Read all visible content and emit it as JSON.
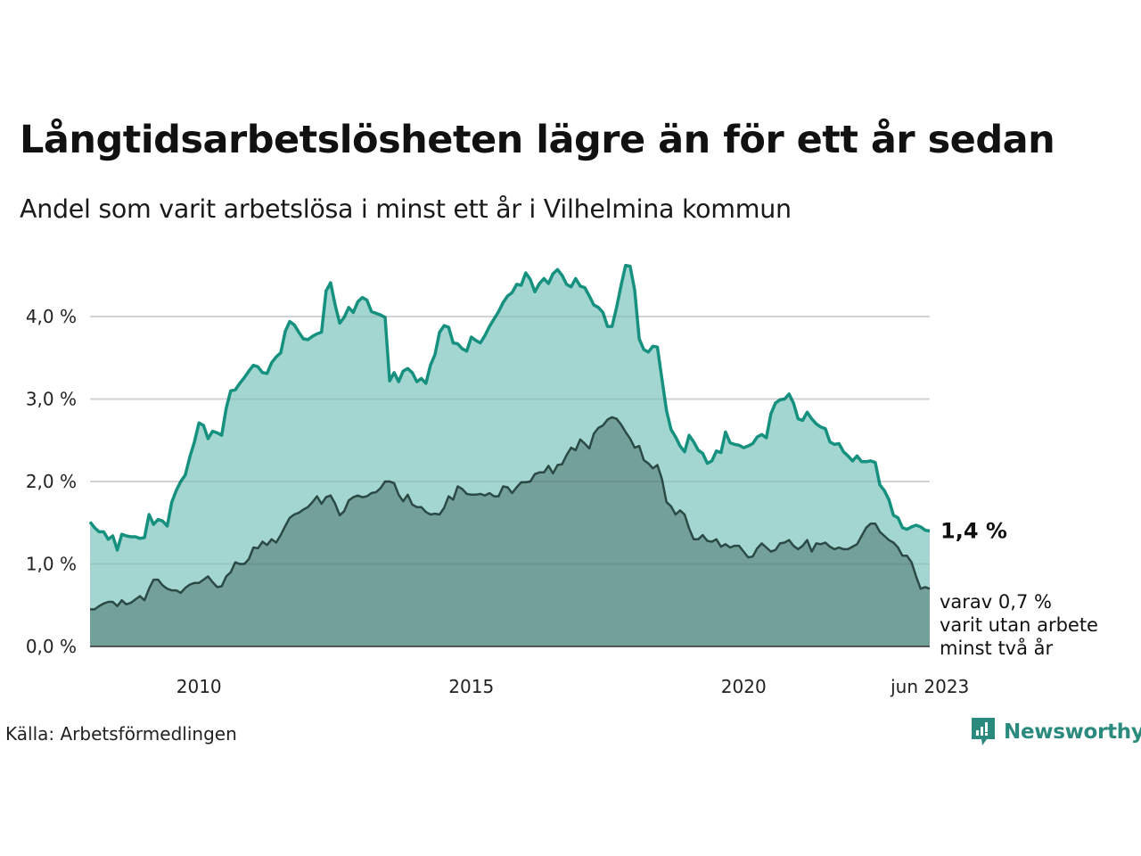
{
  "header": {
    "title": "Långtidsarbetslösheten lägre än för ett år sedan",
    "subtitle": "Andel som varit arbetslösa i minst ett år i Vilhelmina kommun"
  },
  "footer": {
    "source": "Källa: Arbetsförmedlingen",
    "brand": "Newsworthy",
    "brand_icon": "newsworthy-logo-icon"
  },
  "colors": {
    "upper_line": "#16917f",
    "upper_fill": "#a3d6d0",
    "lower_line": "#2b4a46",
    "lower_fill": "#6f9c95",
    "grid": "#e3e3e8",
    "brand": "#2a8a7e"
  },
  "chart_data": {
    "type": "area",
    "title": "Långtidsarbetslösheten lägre än för ett år sedan",
    "subtitle": "Andel som varit arbetslösa i minst ett år i Vilhelmina kommun",
    "xlabel": "",
    "ylabel": "",
    "x_start": "2008-01",
    "x_end": "2023-06",
    "frequency": "monthly",
    "ylim": [
      0,
      4.6
    ],
    "yticks": [
      0,
      1,
      2,
      3,
      4
    ],
    "ytick_labels": [
      "0,0 %",
      "1,0 %",
      "2,0 %",
      "3,0 %",
      "4,0 %"
    ],
    "xticks": [
      {
        "year": 2010,
        "label": "2010"
      },
      {
        "year": 2015,
        "label": "2015"
      },
      {
        "year": 2020,
        "label": "2020"
      },
      {
        "year": 2023.42,
        "label": "jun 2023"
      }
    ],
    "grid": true,
    "series": [
      {
        "name": "Minst ett år",
        "end_label": "1,4 %",
        "values": [
          1.51,
          1.44,
          1.39,
          1.39,
          1.3,
          1.34,
          1.17,
          1.36,
          1.34,
          1.33,
          1.33,
          1.31,
          1.32,
          1.6,
          1.48,
          1.54,
          1.52,
          1.46,
          1.75,
          1.89,
          2.0,
          2.08,
          2.3,
          2.48,
          2.71,
          2.68,
          2.52,
          2.61,
          2.59,
          2.56,
          2.89,
          3.1,
          3.11,
          3.19,
          3.26,
          3.34,
          3.41,
          3.39,
          3.32,
          3.31,
          3.44,
          3.51,
          3.56,
          3.82,
          3.94,
          3.9,
          3.81,
          3.73,
          3.72,
          3.76,
          3.79,
          3.81,
          4.31,
          4.41,
          4.14,
          3.92,
          3.99,
          4.11,
          4.05,
          4.18,
          4.23,
          4.2,
          4.06,
          4.04,
          4.02,
          3.99,
          3.22,
          3.32,
          3.21,
          3.34,
          3.37,
          3.32,
          3.21,
          3.25,
          3.19,
          3.41,
          3.54,
          3.81,
          3.89,
          3.87,
          3.68,
          3.67,
          3.61,
          3.58,
          3.75,
          3.71,
          3.68,
          3.77,
          3.88,
          3.97,
          4.06,
          4.17,
          4.25,
          4.29,
          4.39,
          4.38,
          4.53,
          4.45,
          4.3,
          4.4,
          4.46,
          4.4,
          4.52,
          4.57,
          4.5,
          4.39,
          4.36,
          4.46,
          4.37,
          4.35,
          4.25,
          4.14,
          4.11,
          4.05,
          3.88,
          3.88,
          4.11,
          4.38,
          4.62,
          4.61,
          4.32,
          3.73,
          3.6,
          3.57,
          3.64,
          3.63,
          3.24,
          2.86,
          2.63,
          2.54,
          2.43,
          2.36,
          2.56,
          2.48,
          2.38,
          2.34,
          2.22,
          2.25,
          2.37,
          2.35,
          2.6,
          2.47,
          2.45,
          2.44,
          2.41,
          2.43,
          2.46,
          2.54,
          2.57,
          2.53,
          2.82,
          2.95,
          2.99,
          3.0,
          3.06,
          2.95,
          2.76,
          2.74,
          2.84,
          2.76,
          2.7,
          2.66,
          2.64,
          2.48,
          2.45,
          2.46,
          2.36,
          2.31,
          2.25,
          2.31,
          2.24,
          2.24,
          2.25,
          2.23,
          1.96,
          1.89,
          1.78,
          1.59,
          1.56,
          1.44,
          1.42,
          1.45,
          1.47,
          1.45,
          1.41,
          1.4
        ]
      },
      {
        "name": "Minst två år",
        "end_label_lines": [
          "varav 0,7 %",
          "varit utan arbete",
          "minst två år"
        ],
        "values": [
          0.45,
          0.45,
          0.49,
          0.52,
          0.54,
          0.54,
          0.49,
          0.56,
          0.51,
          0.53,
          0.57,
          0.61,
          0.56,
          0.7,
          0.81,
          0.81,
          0.74,
          0.7,
          0.68,
          0.68,
          0.65,
          0.71,
          0.75,
          0.77,
          0.77,
          0.81,
          0.85,
          0.78,
          0.72,
          0.73,
          0.85,
          0.9,
          1.02,
          1.0,
          1.0,
          1.06,
          1.2,
          1.19,
          1.27,
          1.23,
          1.3,
          1.26,
          1.35,
          1.46,
          1.56,
          1.6,
          1.62,
          1.66,
          1.69,
          1.75,
          1.82,
          1.73,
          1.81,
          1.83,
          1.73,
          1.59,
          1.64,
          1.77,
          1.81,
          1.83,
          1.81,
          1.82,
          1.86,
          1.87,
          1.92,
          2.0,
          2.0,
          1.98,
          1.84,
          1.76,
          1.84,
          1.72,
          1.69,
          1.69,
          1.63,
          1.6,
          1.61,
          1.6,
          1.68,
          1.82,
          1.78,
          1.94,
          1.91,
          1.85,
          1.84,
          1.84,
          1.85,
          1.83,
          1.86,
          1.82,
          1.82,
          1.94,
          1.93,
          1.86,
          1.93,
          1.99,
          1.99,
          2.0,
          2.09,
          2.11,
          2.11,
          2.19,
          2.1,
          2.2,
          2.21,
          2.32,
          2.41,
          2.38,
          2.51,
          2.46,
          2.4,
          2.58,
          2.65,
          2.68,
          2.75,
          2.78,
          2.76,
          2.69,
          2.6,
          2.52,
          2.41,
          2.43,
          2.26,
          2.22,
          2.16,
          2.2,
          2.03,
          1.75,
          1.7,
          1.6,
          1.65,
          1.6,
          1.43,
          1.3,
          1.3,
          1.35,
          1.28,
          1.27,
          1.3,
          1.21,
          1.24,
          1.2,
          1.22,
          1.22,
          1.15,
          1.08,
          1.09,
          1.19,
          1.25,
          1.2,
          1.15,
          1.17,
          1.25,
          1.26,
          1.29,
          1.22,
          1.18,
          1.22,
          1.29,
          1.15,
          1.25,
          1.24,
          1.26,
          1.21,
          1.18,
          1.2,
          1.18,
          1.18,
          1.21,
          1.24,
          1.34,
          1.44,
          1.49,
          1.49,
          1.39,
          1.34,
          1.29,
          1.26,
          1.2,
          1.1,
          1.1,
          1.02,
          0.85,
          0.7,
          0.72,
          0.7
        ]
      }
    ]
  }
}
